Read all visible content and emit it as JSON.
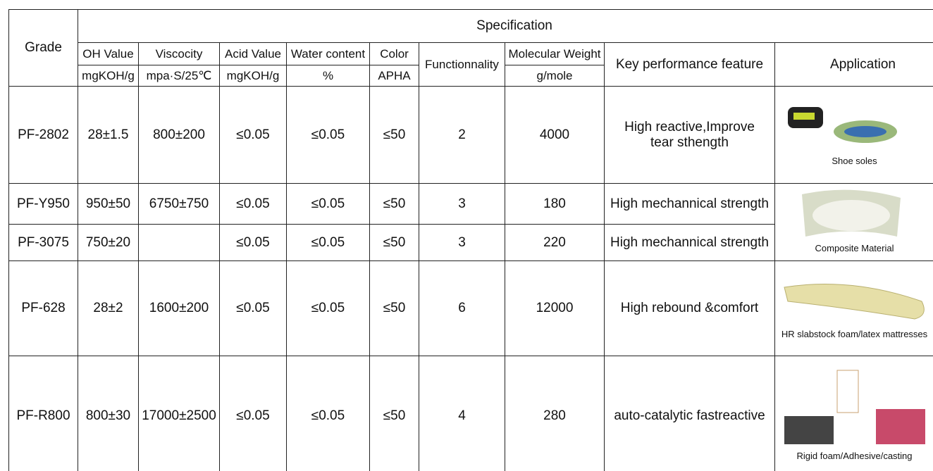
{
  "table": {
    "grade_header": "Grade",
    "spec_header": "Specification",
    "columns": [
      {
        "name": "OH Value",
        "unit": "mgKOH/g"
      },
      {
        "name": "Viscocity",
        "unit": "mpa·S/25℃"
      },
      {
        "name": "Acid Value",
        "unit": "mgKOH/g"
      },
      {
        "name": "Water content",
        "unit": "%"
      },
      {
        "name": "Color",
        "unit": "APHA"
      },
      {
        "name": "Functionnality"
      },
      {
        "name": "Molecular Weight",
        "unit": "g/mole"
      }
    ],
    "feature_header": "Key performance feature",
    "application_header": "Application",
    "rows": [
      {
        "grade": "PF-2802",
        "cells": [
          "28±1.5",
          "800±200",
          "≤0.05",
          "≤0.05",
          "≤50",
          "2",
          "4000"
        ],
        "feature": "High reactive,Improve tear sthength"
      },
      {
        "grade": "PF-Y950",
        "cells": [
          "950±50",
          "6750±750",
          "≤0.05",
          "≤0.05",
          "≤50",
          "3",
          "180"
        ],
        "feature": "High mechannical strength"
      },
      {
        "grade": "PF-3075",
        "cells": [
          "750±20",
          null,
          "≤0.05",
          "≤0.05",
          "≤50",
          "3",
          "220"
        ],
        "feature": "High mechannical strength"
      },
      {
        "grade": "PF-628",
        "cells": [
          "28±2",
          "1600±200",
          "≤0.05",
          "≤0.05",
          "≤50",
          "6",
          "12000"
        ],
        "feature": "High rebound &comfort"
      },
      {
        "grade": "PF-R800",
        "cells": [
          "800±30",
          "17000±2500",
          "≤0.05",
          "≤0.05",
          "≤50",
          "4",
          "280"
        ],
        "feature": "auto-catalytic fastreactive"
      }
    ],
    "applications": [
      {
        "caption": "Shoe soles"
      },
      {
        "caption": "Composite Material"
      },
      {
        "caption": "HR slabstock foam/latex mattresses"
      },
      {
        "caption": "Rigid foam/Adhesive/casting"
      }
    ]
  }
}
